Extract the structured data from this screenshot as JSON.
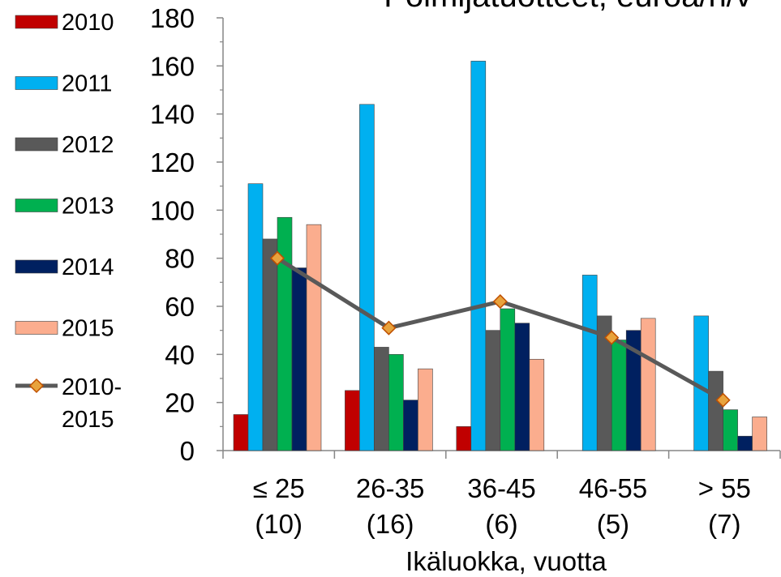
{
  "chart_data": {
    "type": "bar",
    "title": "Poimijatuotteet, euroa/h/v",
    "xlabel": "Ikäluokka, vuotta",
    "ylabel": "",
    "ylim": [
      0,
      180
    ],
    "yticks": [
      "0",
      "20",
      "40",
      "60",
      "80",
      "100",
      "120",
      "140",
      "160",
      "180"
    ],
    "categories": [
      [
        "≤ 25",
        "(10)"
      ],
      [
        "26-35",
        "(16)"
      ],
      [
        "36-45",
        "(6)"
      ],
      [
        "46-55",
        "(5)"
      ],
      [
        "> 55",
        "(7)"
      ]
    ],
    "series": [
      {
        "name": "2010",
        "color": "#c00000",
        "values": [
          15,
          25,
          10,
          null,
          null
        ]
      },
      {
        "name": "2011",
        "color": "#00b0f0",
        "values": [
          111,
          144,
          162,
          73,
          56
        ]
      },
      {
        "name": "2012",
        "color": "#595959",
        "values": [
          88,
          43,
          50,
          56,
          33
        ]
      },
      {
        "name": "2013",
        "color": "#00b050",
        "values": [
          97,
          40,
          59,
          46,
          17
        ]
      },
      {
        "name": "2014",
        "color": "#002060",
        "values": [
          76,
          21,
          53,
          50,
          6
        ]
      },
      {
        "name": "2015",
        "color": "#fbad8e",
        "values": [
          94,
          34,
          38,
          55,
          14
        ]
      }
    ],
    "line_series": {
      "name": "2010-2015",
      "name_lines": [
        "2010-",
        "2015"
      ],
      "color": "#595959",
      "marker_color": "#e8a33d",
      "marker_edge": "#c05000",
      "values": [
        80,
        51,
        62,
        47,
        21
      ]
    },
    "legend_position": "left",
    "grid": false
  }
}
